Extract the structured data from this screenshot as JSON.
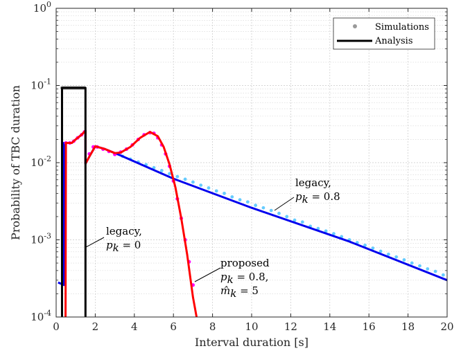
{
  "chart_data": {
    "type": "line",
    "xlabel": "Interval duration [s]",
    "ylabel": "Probability of TBC duration",
    "xlim": [
      0,
      20
    ],
    "ylim": [
      0.0001,
      1
    ],
    "yscale": "log",
    "xticks": [
      "0",
      "2",
      "4",
      "6",
      "8",
      "10",
      "12",
      "14",
      "16",
      "18",
      "20"
    ],
    "yticks": [
      {
        "base": "10",
        "exp": "-4",
        "value": 0.0001
      },
      {
        "base": "10",
        "exp": "-3",
        "value": 0.001
      },
      {
        "base": "10",
        "exp": "-2",
        "value": 0.01
      },
      {
        "base": "10",
        "exp": "-1",
        "value": 0.1
      },
      {
        "base": "10",
        "exp": "0",
        "value": 1
      }
    ],
    "grid": true,
    "legend": {
      "position": "top-right",
      "entries": [
        {
          "label": "Simulations",
          "marker": "dot",
          "color": "#9a9a9a"
        },
        {
          "label": "Analysis",
          "marker": "line",
          "color": "#000000"
        }
      ]
    },
    "series": [
      {
        "color": "#000000",
        "kind": "analysis",
        "x": [
          0.3,
          0.3,
          1.5,
          1.5
        ],
        "y": [
          5e-05,
          0.093,
          0.093,
          5e-05
        ]
      },
      {
        "color": "#9a9a9a",
        "kind": "simulation",
        "x": [
          0.3,
          0.35,
          0.4,
          0.45,
          0.5,
          0.55,
          0.6,
          0.65,
          0.7,
          0.75,
          0.8,
          0.85,
          0.9,
          0.95,
          1.0,
          1.05,
          1.1,
          1.15,
          1.2,
          1.25,
          1.3,
          1.35,
          1.4,
          1.45
        ],
        "y": [
          0.093,
          0.093,
          0.093,
          0.093,
          0.093,
          0.093,
          0.093,
          0.093,
          0.093,
          0.093,
          0.093,
          0.093,
          0.093,
          0.093,
          0.093,
          0.093,
          0.093,
          0.093,
          0.093,
          0.093,
          0.093,
          0.093,
          0.093,
          0.093
        ]
      },
      {
        "color": "#0000ee",
        "kind": "analysis",
        "x": [
          0.1,
          0.4,
          0.4,
          0.5,
          0.8,
          1.0,
          1.3,
          1.5,
          1.5,
          1.7,
          2.0,
          2.5,
          3.0,
          3.3,
          6.0,
          10.0,
          15.0,
          20.0
        ],
        "y": [
          0.00028,
          0.00026,
          0.018,
          0.018,
          0.018,
          0.02,
          0.023,
          0.026,
          0.0097,
          0.012,
          0.0163,
          0.015,
          0.0133,
          0.0124,
          0.0062,
          0.0026,
          0.00095,
          0.0003
        ]
      },
      {
        "color": "#66ccff",
        "kind": "simulation",
        "x": [
          3.4,
          3.8,
          4.2,
          4.6,
          5.0,
          5.4,
          5.8,
          6.2,
          6.6,
          7.0,
          7.4,
          7.8,
          8.2,
          8.6,
          9.0,
          9.4,
          9.8,
          10.2,
          10.6,
          11.0,
          11.4,
          11.8,
          12.2,
          12.6,
          13.0,
          13.4,
          13.8,
          14.2,
          14.6,
          15.0,
          15.4,
          15.8,
          16.2,
          16.6,
          17.0,
          17.4,
          17.8,
          18.2,
          18.6,
          19.0,
          19.4,
          19.8
        ],
        "y": [
          0.0121,
          0.0111,
          0.0102,
          0.0094,
          0.0086,
          0.0079,
          0.0072,
          0.0066,
          0.0061,
          0.0056,
          0.0051,
          0.0047,
          0.0043,
          0.004,
          0.0036,
          0.0033,
          0.0031,
          0.0028,
          0.0026,
          0.0024,
          0.0022,
          0.002,
          0.0018,
          0.0017,
          0.0015,
          0.0014,
          0.0013,
          0.0012,
          0.0011,
          0.001,
          0.00092,
          0.00085,
          0.00078,
          0.00071,
          0.00065,
          0.0006,
          0.00055,
          0.0005,
          0.00046,
          0.00042,
          0.00039,
          0.00035
        ]
      },
      {
        "color": "#ff0000",
        "kind": "analysis",
        "x": [
          0.48,
          0.5,
          0.8,
          1.0,
          1.3,
          1.5,
          1.5,
          1.7,
          2.0,
          2.5,
          3.0,
          3.3,
          3.8,
          4.3,
          4.8,
          5.2,
          5.5,
          5.8,
          6.1,
          6.4,
          6.7,
          7.0,
          7.2,
          7.3
        ],
        "y": [
          0.0001,
          0.018,
          0.018,
          0.02,
          0.023,
          0.026,
          0.0097,
          0.012,
          0.0163,
          0.015,
          0.0133,
          0.0135,
          0.016,
          0.021,
          0.025,
          0.022,
          0.016,
          0.0095,
          0.0048,
          0.0019,
          0.00065,
          0.00018,
          9.5e-05,
          6e-05
        ]
      },
      {
        "color": "#ff00ff",
        "kind": "simulation",
        "x": [
          0.5,
          0.7,
          0.9,
          1.1,
          1.3,
          1.45,
          1.7,
          1.9,
          2.1,
          2.4,
          2.7,
          3.0,
          3.3,
          3.6,
          3.9,
          4.2,
          4.5,
          4.8,
          5.0,
          5.2,
          5.4,
          5.6,
          5.8,
          6.0,
          6.2,
          6.4,
          6.6,
          6.8,
          7.0
        ],
        "y": [
          0.018,
          0.018,
          0.019,
          0.021,
          0.023,
          0.025,
          0.013,
          0.016,
          0.016,
          0.015,
          0.014,
          0.0128,
          0.0137,
          0.015,
          0.017,
          0.02,
          0.023,
          0.0245,
          0.024,
          0.021,
          0.017,
          0.013,
          0.009,
          0.0058,
          0.0034,
          0.0019,
          0.001,
          0.00052,
          0.00026
        ]
      }
    ],
    "annotations": [
      {
        "id": "legacy-pk0",
        "lines": [
          "legacy,",
          "p_k = 0"
        ]
      },
      {
        "id": "legacy-pk08",
        "lines": [
          "legacy,",
          "p_k = 0.8"
        ]
      },
      {
        "id": "proposed",
        "lines": [
          "proposed",
          "p_k = 0.8,",
          "m̂_k = 5"
        ]
      }
    ]
  },
  "text": {
    "ann_legacy0_l1": "legacy,",
    "ann_legacy0_l2": "p",
    "ann_legacy0_sub": "k",
    "ann_legacy0_eq": " = 0",
    "ann_legacy8_l1": "legacy,",
    "ann_legacy8_l2": "p",
    "ann_legacy8_sub": "k",
    "ann_legacy8_eq": " = 0.8",
    "ann_prop_l1": "proposed",
    "ann_prop_l2": "p",
    "ann_prop_sub": "k",
    "ann_prop_eq": " = 0.8,",
    "ann_prop_l3": "m̂",
    "ann_prop_sub3": "k",
    "ann_prop_eq3": " = 5"
  }
}
